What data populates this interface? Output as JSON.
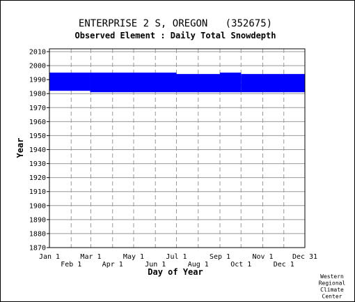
{
  "chart_data": {
    "type": "bar",
    "title": "ENTERPRISE 2 S, OREGON   (352675)",
    "subtitle": "Observed Element : Daily Total Snowdepth",
    "xlabel": "Day of Year",
    "ylabel": "Year",
    "credit": [
      "Western",
      "Regional",
      "Climate",
      "Center"
    ],
    "x_ticks_top_row": [
      "Jan 1",
      "Mar 1",
      "May 1",
      "Jul 1",
      "Sep 1",
      "Nov 1",
      "Dec 31"
    ],
    "x_ticks_bottom_row": [
      "Feb 1",
      "Apr 1",
      "Jun 1",
      "Aug 1",
      "Oct 1",
      "Dec 1"
    ],
    "y_ticks": [
      1870,
      1880,
      1890,
      1900,
      1910,
      1920,
      1930,
      1940,
      1950,
      1960,
      1970,
      1980,
      1990,
      2000,
      2010
    ],
    "ylim": [
      1870,
      2012
    ],
    "xlim_days": [
      1,
      365
    ],
    "grid": true,
    "bar_color": "#0000ff",
    "coverage": [
      {
        "start_day": 1,
        "end_day": 59,
        "start_year": 1982,
        "end_year": 1995
      },
      {
        "start_day": 59,
        "end_day": 121,
        "start_year": 1981,
        "end_year": 1995
      },
      {
        "start_day": 121,
        "end_day": 182,
        "start_year": 1981,
        "end_year": 1995
      },
      {
        "start_day": 182,
        "end_day": 244,
        "start_year": 1981,
        "end_year": 1994
      },
      {
        "start_day": 244,
        "end_day": 274,
        "start_year": 1981,
        "end_year": 1995
      },
      {
        "start_day": 274,
        "end_day": 365,
        "start_year": 1981,
        "end_year": 1994
      }
    ]
  }
}
